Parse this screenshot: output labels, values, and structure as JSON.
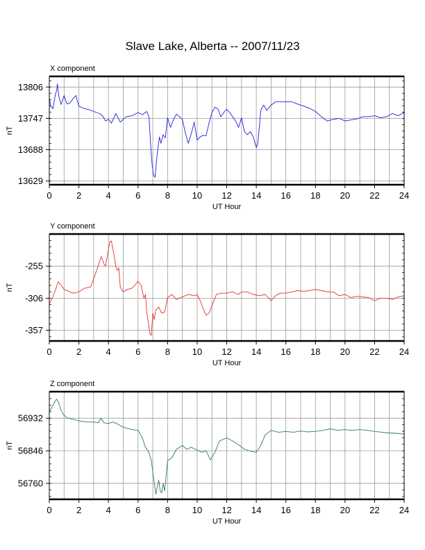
{
  "title": "Slave Lake, Alberta -- 2007/11/23",
  "colors": {
    "X": "#1f1fd8",
    "Y": "#e03030",
    "Z": "#2e7d4f",
    "grid": "#999999"
  },
  "chart_data": [
    {
      "type": "line",
      "title": "X component",
      "xlabel": "UT Hour",
      "ylabel": "nT",
      "xlim": [
        0,
        24
      ],
      "ylim": [
        13622,
        13826
      ],
      "xticks": [
        0,
        2,
        4,
        6,
        8,
        10,
        12,
        14,
        16,
        18,
        20,
        22,
        24
      ],
      "yticks": [
        13629,
        13688,
        13747,
        13806
      ],
      "grid": true,
      "series": [
        {
          "color": "#1f1fd8",
          "x": [
            0.0,
            0.1,
            0.25,
            0.4,
            0.5,
            0.55,
            0.65,
            0.8,
            1.0,
            1.2,
            1.4,
            1.6,
            1.8,
            2.0,
            2.3,
            2.6,
            3.0,
            3.4,
            3.6,
            3.8,
            4.0,
            4.2,
            4.5,
            4.8,
            5.2,
            5.6,
            6.0,
            6.3,
            6.6,
            6.75,
            6.85,
            6.95,
            7.05,
            7.15,
            7.3,
            7.45,
            7.55,
            7.7,
            7.85,
            8.0,
            8.2,
            8.4,
            8.6,
            8.8,
            9.0,
            9.2,
            9.4,
            9.6,
            9.8,
            10.0,
            10.2,
            10.4,
            10.6,
            10.8,
            11.0,
            11.2,
            11.4,
            11.6,
            11.8,
            12.0,
            12.2,
            12.4,
            12.6,
            12.8,
            13.0,
            13.2,
            13.4,
            13.6,
            13.8,
            14.0,
            14.1,
            14.2,
            14.3,
            14.5,
            14.7,
            15.0,
            15.3,
            15.6,
            16.0,
            16.4,
            16.8,
            17.2,
            17.6,
            18.0,
            18.4,
            18.8,
            19.2,
            19.6,
            20.0,
            20.4,
            20.8,
            21.2,
            21.6,
            22.0,
            22.4,
            22.8,
            23.2,
            23.6,
            24.0
          ],
          "y": [
            13785,
            13770,
            13765,
            13790,
            13800,
            13812,
            13788,
            13773,
            13790,
            13774,
            13776,
            13784,
            13790,
            13770,
            13766,
            13764,
            13760,
            13756,
            13752,
            13742,
            13745,
            13738,
            13756,
            13740,
            13750,
            13752,
            13758,
            13754,
            13760,
            13748,
            13700,
            13660,
            13640,
            13636,
            13680,
            13712,
            13700,
            13716,
            13710,
            13748,
            13730,
            13745,
            13755,
            13750,
            13745,
            13720,
            13700,
            13718,
            13740,
            13706,
            13712,
            13715,
            13714,
            13738,
            13758,
            13768,
            13765,
            13750,
            13758,
            13764,
            13758,
            13750,
            13742,
            13730,
            13748,
            13722,
            13716,
            13722,
            13712,
            13692,
            13700,
            13728,
            13762,
            13772,
            13762,
            13772,
            13778,
            13778,
            13778,
            13778,
            13774,
            13770,
            13766,
            13760,
            13750,
            13742,
            13745,
            13747,
            13742,
            13744,
            13746,
            13750,
            13750,
            13752,
            13748,
            13750,
            13756,
            13752,
            13758
          ]
        }
      ]
    },
    {
      "type": "line",
      "title": "Y component",
      "xlabel": "UT Hour",
      "ylabel": "nT",
      "xlim": [
        0,
        24
      ],
      "ylim": [
        -374,
        -204
      ],
      "xticks": [
        0,
        2,
        4,
        6,
        8,
        10,
        12,
        14,
        16,
        18,
        20,
        22,
        24
      ],
      "yticks": [
        -255,
        -306,
        -357
      ],
      "grid": true,
      "series": [
        {
          "color": "#e03030",
          "x": [
            0.0,
            0.2,
            0.4,
            0.6,
            0.8,
            1.0,
            1.3,
            1.6,
            2.0,
            2.4,
            2.8,
            3.0,
            3.2,
            3.4,
            3.5,
            3.6,
            3.7,
            3.8,
            3.9,
            4.0,
            4.1,
            4.2,
            4.3,
            4.4,
            4.5,
            4.6,
            4.7,
            4.8,
            5.0,
            5.3,
            5.6,
            5.8,
            6.0,
            6.2,
            6.4,
            6.5,
            6.6,
            6.7,
            6.8,
            6.9,
            7.0,
            7.1,
            7.2,
            7.4,
            7.6,
            7.8,
            8.0,
            8.3,
            8.6,
            9.0,
            9.4,
            9.8,
            10.0,
            10.2,
            10.4,
            10.6,
            10.8,
            11.0,
            11.3,
            11.6,
            12.0,
            12.4,
            12.8,
            13.0,
            13.4,
            13.8,
            14.2,
            14.6,
            15.0,
            15.3,
            15.6,
            16.0,
            16.4,
            16.8,
            17.2,
            17.6,
            18.0,
            18.4,
            18.8,
            19.2,
            19.6,
            20.0,
            20.4,
            20.8,
            21.2,
            21.6,
            22.0,
            22.4,
            22.8,
            23.2,
            23.6,
            24.0
          ],
          "y": [
            -315,
            -306,
            -294,
            -280,
            -285,
            -292,
            -295,
            -298,
            -296,
            -290,
            -288,
            -275,
            -262,
            -248,
            -240,
            -245,
            -252,
            -255,
            -242,
            -228,
            -216,
            -215,
            -228,
            -240,
            -256,
            -262,
            -258,
            -288,
            -296,
            -292,
            -290,
            -285,
            -279,
            -285,
            -306,
            -300,
            -330,
            -345,
            -362,
            -365,
            -330,
            -340,
            -325,
            -320,
            -330,
            -328,
            -305,
            -300,
            -308,
            -304,
            -300,
            -302,
            -300,
            -310,
            -322,
            -333,
            -330,
            -318,
            -300,
            -298,
            -298,
            -296,
            -300,
            -296,
            -296,
            -300,
            -302,
            -300,
            -310,
            -302,
            -298,
            -298,
            -296,
            -294,
            -295,
            -294,
            -292,
            -294,
            -296,
            -296,
            -302,
            -300,
            -305,
            -303,
            -304,
            -305,
            -310,
            -306,
            -306,
            -308,
            -304,
            -302
          ]
        }
      ]
    },
    {
      "type": "line",
      "title": "Z component",
      "xlabel": "UT Hour",
      "ylabel": "nT",
      "xlim": [
        0,
        24
      ],
      "ylim": [
        56718,
        57002
      ],
      "xticks": [
        0,
        2,
        4,
        6,
        8,
        10,
        12,
        14,
        16,
        18,
        20,
        22,
        24
      ],
      "yticks": [
        56760,
        56846,
        56932
      ],
      "grid": true,
      "series": [
        {
          "color": "#2e7d4f",
          "x": [
            0.0,
            0.2,
            0.3,
            0.4,
            0.5,
            0.6,
            0.7,
            0.8,
            0.9,
            1.0,
            1.2,
            1.5,
            2.0,
            2.5,
            3.0,
            3.3,
            3.5,
            3.7,
            4.0,
            4.3,
            4.6,
            5.0,
            5.3,
            5.6,
            6.0,
            6.3,
            6.5,
            6.7,
            6.9,
            7.0,
            7.1,
            7.2,
            7.3,
            7.4,
            7.5,
            7.6,
            7.7,
            7.8,
            8.0,
            8.3,
            8.6,
            9.0,
            9.3,
            9.6,
            10.0,
            10.3,
            10.6,
            10.9,
            11.2,
            11.5,
            12.0,
            12.4,
            12.8,
            13.2,
            13.6,
            14.0,
            14.3,
            14.6,
            15.0,
            15.5,
            16.0,
            16.5,
            17.0,
            17.5,
            18.0,
            18.5,
            19.0,
            19.5,
            20.0,
            20.5,
            21.0,
            21.5,
            22.0,
            22.5,
            23.0,
            23.5,
            24.0
          ],
          "y": [
            56950,
            56962,
            56970,
            56978,
            56982,
            56976,
            56965,
            56952,
            56945,
            56940,
            56933,
            56930,
            56925,
            56922,
            56922,
            56920,
            56932,
            56920,
            56918,
            56922,
            56917,
            56908,
            56905,
            56902,
            56900,
            56880,
            56855,
            56845,
            56820,
            56790,
            56760,
            56732,
            56750,
            56768,
            56740,
            56735,
            56760,
            56740,
            56820,
            56828,
            56850,
            56860,
            56850,
            56855,
            56848,
            56842,
            56846,
            56822,
            56842,
            56872,
            56880,
            56872,
            56862,
            56850,
            56845,
            56842,
            56860,
            56888,
            56900,
            56895,
            56897,
            56895,
            56898,
            56896,
            56897,
            56900,
            56904,
            56900,
            56902,
            56900,
            56902,
            56900,
            56897,
            56895,
            56893,
            56892,
            56890
          ]
        }
      ]
    }
  ]
}
